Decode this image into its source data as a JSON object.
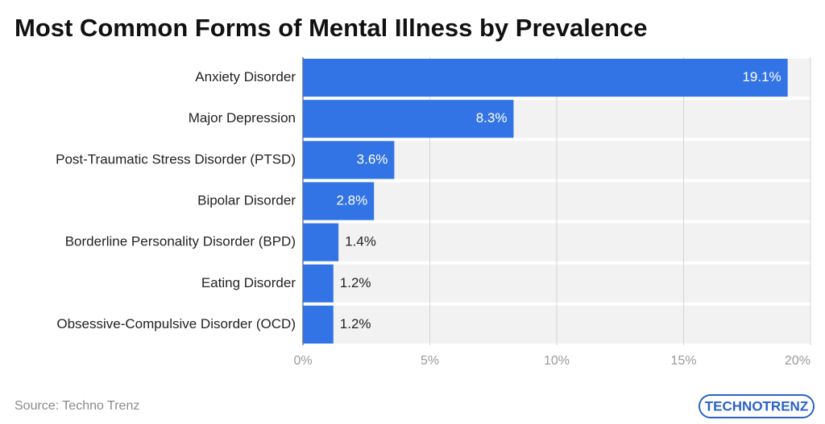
{
  "chart_data": {
    "type": "bar",
    "orientation": "horizontal",
    "title": "Most Common Forms of Mental Illness by Prevalence",
    "categories": [
      "Anxiety Disorder",
      "Major Depression",
      "Post-Traumatic Stress Disorder (PTSD)",
      "Bipolar Disorder",
      "Borderline Personality Disorder (BPD)",
      "Eating Disorder",
      "Obsessive-Compulsive Disorder (OCD)"
    ],
    "values": [
      19.1,
      8.3,
      3.6,
      2.8,
      1.4,
      1.2,
      1.2
    ],
    "value_labels": [
      "19.1%",
      "8.3%",
      "3.6%",
      "2.8%",
      "1.4%",
      "1.2%",
      "1.2%"
    ],
    "color": "#3274e6",
    "xlim": [
      0,
      20
    ],
    "xticks": [
      {
        "value": 0,
        "label": "0%"
      },
      {
        "value": 5,
        "label": "5%"
      },
      {
        "value": 10,
        "label": "10%"
      },
      {
        "value": 15,
        "label": "15%"
      },
      {
        "value": 20,
        "label": "20%"
      }
    ],
    "grid": true,
    "source": "Source: Techno Trenz",
    "logo": "TECHNOTRENZ"
  }
}
